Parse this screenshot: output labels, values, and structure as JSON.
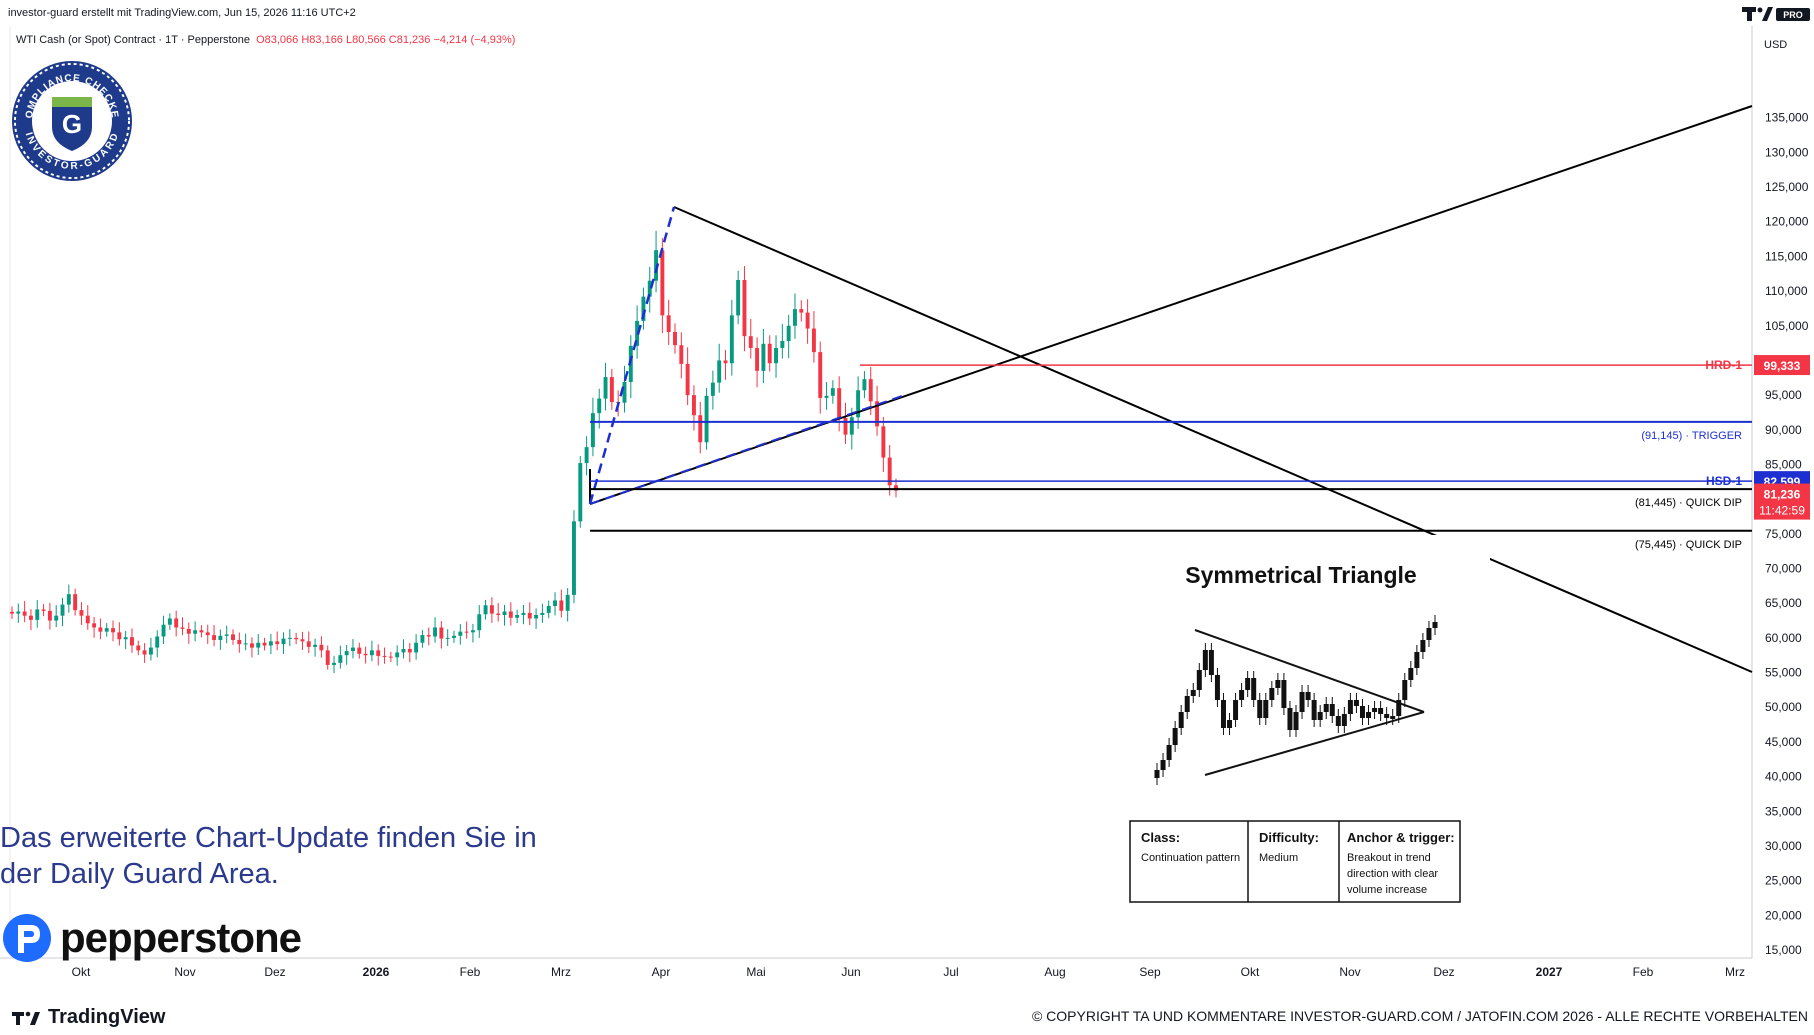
{
  "header": {
    "title": "investor-guard erstellt mit TradingView.com, Jun 15, 2026 11:16 UTC+2",
    "symbol": "WTI Cash (or Spot) Contract · 1T · Pepperstone",
    "ohlc": "O83,066 H83,166 L80,566 C81,236 −4,214 (−4,93%)",
    "currency": "USD",
    "brand_badge": "PRO"
  },
  "badge": {
    "top_text": "COMPLIANCE CHECKED",
    "bottom_text": "INVESTOR-GUARD",
    "letter": "G"
  },
  "cta": {
    "line1": "Das erweiterte Chart-Update finden Sie in",
    "line2": "der Daily Guard Area."
  },
  "pepperstone": "pepperstone",
  "tradingview": "TradingView",
  "copyright": "© COPYRIGHT TA UND KOMMENTARE INVESTOR-GUARD.COM / JATOFIN.COM 2026 - ALLE RECHTE VORBEHALTEN",
  "colors": {
    "up": "#089981",
    "down": "#f23645",
    "hrd": "#f23645",
    "trigger": "#1e2fd1",
    "hsd": "#1e2fd1",
    "dip": "#000000",
    "cta": "#2b3a8c"
  },
  "chart_data": {
    "type": "candlestick",
    "ylim": [
      15000,
      140000
    ],
    "y_ticks": [
      "135,000",
      "130,000",
      "125,000",
      "120,000",
      "115,000",
      "110,000",
      "105,000",
      "100,000",
      "95,000",
      "90,000",
      "85,000",
      "80,000",
      "75,000",
      "70,000",
      "65,000",
      "60,000",
      "55,000",
      "50,000",
      "45,000",
      "40,000",
      "35,000",
      "30,000",
      "25,000",
      "20,000",
      "15,000"
    ],
    "x_ticks": [
      "Okt",
      "Nov",
      "Dez",
      "2026",
      "Feb",
      "Mrz",
      "Apr",
      "Mai",
      "Jun",
      "Jul",
      "Aug",
      "Sep",
      "Okt",
      "Nov",
      "Dez",
      "2027",
      "Feb",
      "Mrz"
    ],
    "levels": [
      {
        "name": "HRD-1",
        "value": 99333,
        "label": "HRD-1",
        "price_label": "99,333"
      },
      {
        "name": "trigger",
        "value": 91145,
        "label": "(91,145) · TRIGGER"
      },
      {
        "name": "HSD-1",
        "value": 82599,
        "label": "HSD-1",
        "price_label": "82,599"
      },
      {
        "name": "quick-dip-1",
        "value": 81445,
        "label": "(81,445) · QUICK DIP"
      },
      {
        "name": "quick-dip-2",
        "value": 75445,
        "label": "(75,445) · QUICK DIP"
      }
    ],
    "last_price": {
      "value": 81236,
      "label": "81,236",
      "countdown": "11:42:59"
    },
    "series_closes": [
      63500,
      63800,
      63200,
      62600,
      64100,
      63900,
      62500,
      63200,
      64800,
      66300,
      64000,
      63200,
      62100,
      61500,
      60900,
      61400,
      60800,
      59800,
      60100,
      58900,
      58200,
      57600,
      58600,
      60200,
      61900,
      62800,
      61500,
      61300,
      60600,
      61100,
      60800,
      60400,
      59700,
      60300,
      60500,
      59700,
      59100,
      59200,
      58600,
      59300,
      58900,
      59500,
      59100,
      59900,
      60000,
      59800,
      59500,
      58700,
      59000,
      58200,
      56100,
      56400,
      57500,
      58100,
      58600,
      57700,
      57500,
      58200,
      57400,
      57300,
      57200,
      57900,
      58400,
      57900,
      59300,
      60400,
      60200,
      61500,
      59900,
      60000,
      60300,
      60900,
      60800,
      61100,
      63400,
      64700,
      63500,
      63300,
      63800,
      62900,
      63300,
      63600,
      62800,
      63300,
      63600,
      64600,
      65400,
      63900,
      66200,
      76800,
      85200,
      87500,
      92400,
      94500,
      97600,
      94000,
      93900,
      96900,
      102100,
      105700,
      109200,
      111500,
      115900,
      106500,
      104100,
      102200,
      99500,
      95000,
      92100,
      88200,
      94900,
      96800,
      100000,
      99600,
      106500,
      111600,
      103500,
      101800,
      98500,
      102400,
      99600,
      101800,
      102800,
      105000,
      107400,
      106900,
      104600,
      101200,
      94600,
      94900,
      96000,
      91700,
      89300,
      91800,
      95700,
      97300,
      94100,
      90500,
      86000,
      82000,
      81236
    ],
    "pattern_inset": {
      "title": "Symmetrical Triangle",
      "class_label": "Class:",
      "class_value": "Continuation pattern",
      "difficulty_label": "Difficulty:",
      "difficulty_value": "Medium",
      "anchor_label": "Anchor & trigger:",
      "anchor_value_1": "Breakout in trend",
      "anchor_value_2": "direction with clear",
      "anchor_value_3": "volume increase"
    }
  }
}
